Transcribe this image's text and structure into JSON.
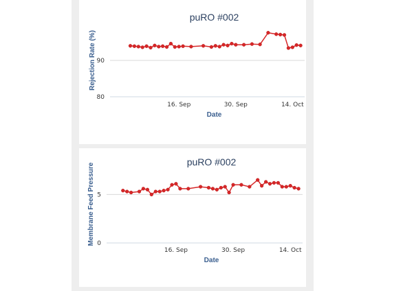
{
  "chart_data": [
    {
      "type": "line",
      "title": "puRO #002",
      "xlabel": "Date",
      "ylabel": "Rejection Rate (%)",
      "ylim": [
        80,
        100
      ],
      "yticks": [
        80,
        90
      ],
      "xlim": [
        "2023-08-30",
        "2023-10-17"
      ],
      "xticks": [
        {
          "date": "2023-09-16",
          "label": "16. Sep"
        },
        {
          "date": "2023-09-30",
          "label": "30. Sep"
        },
        {
          "date": "2023-10-14",
          "label": "14. Oct"
        }
      ],
      "grid": true,
      "series": [
        {
          "color": "#d62728",
          "x": [
            "2023-09-04",
            "2023-09-05",
            "2023-09-06",
            "2023-09-07",
            "2023-09-08",
            "2023-09-09",
            "2023-09-10",
            "2023-09-11",
            "2023-09-12",
            "2023-09-13",
            "2023-09-14",
            "2023-09-15",
            "2023-09-16",
            "2023-09-17",
            "2023-09-19",
            "2023-09-22",
            "2023-09-24",
            "2023-09-25",
            "2023-09-26",
            "2023-09-27",
            "2023-09-28",
            "2023-09-29",
            "2023-09-30",
            "2023-10-02",
            "2023-10-04",
            "2023-10-06",
            "2023-10-08",
            "2023-10-10",
            "2023-10-11",
            "2023-10-12",
            "2023-10-13",
            "2023-10-14",
            "2023-10-15",
            "2023-10-16"
          ],
          "y": [
            94.0,
            93.9,
            93.8,
            93.6,
            93.9,
            93.5,
            94.1,
            93.8,
            93.9,
            93.7,
            94.6,
            93.7,
            93.8,
            93.9,
            93.8,
            94.0,
            93.7,
            94.0,
            93.8,
            94.3,
            94.1,
            94.6,
            94.3,
            94.3,
            94.5,
            94.4,
            97.6,
            97.2,
            97.1,
            97.0,
            93.4,
            93.6,
            94.2,
            94.1
          ]
        }
      ]
    },
    {
      "type": "line",
      "title": "puRO #002",
      "xlabel": "Date",
      "ylabel": "Membrane Feed Pressure",
      "ylim": [
        0,
        8
      ],
      "yticks": [
        0,
        5
      ],
      "xlim": [
        "2023-08-30",
        "2023-10-17"
      ],
      "xticks": [
        {
          "date": "2023-09-16",
          "label": "16. Sep"
        },
        {
          "date": "2023-09-30",
          "label": "30. Sep"
        },
        {
          "date": "2023-10-14",
          "label": "14. Oct"
        }
      ],
      "grid": true,
      "series": [
        {
          "color": "#d62728",
          "x": [
            "2023-09-03",
            "2023-09-04",
            "2023-09-05",
            "2023-09-07",
            "2023-09-08",
            "2023-09-09",
            "2023-09-10",
            "2023-09-11",
            "2023-09-12",
            "2023-09-13",
            "2023-09-14",
            "2023-09-15",
            "2023-09-16",
            "2023-09-17",
            "2023-09-19",
            "2023-09-22",
            "2023-09-24",
            "2023-09-25",
            "2023-09-26",
            "2023-09-27",
            "2023-09-28",
            "2023-09-29",
            "2023-09-30",
            "2023-10-02",
            "2023-10-04",
            "2023-10-06",
            "2023-10-07",
            "2023-10-08",
            "2023-10-09",
            "2023-10-10",
            "2023-10-11",
            "2023-10-12",
            "2023-10-13",
            "2023-10-14",
            "2023-10-15",
            "2023-10-16"
          ],
          "y": [
            5.4,
            5.3,
            5.2,
            5.3,
            5.6,
            5.5,
            5.0,
            5.3,
            5.3,
            5.4,
            5.5,
            6.0,
            6.1,
            5.6,
            5.6,
            5.8,
            5.7,
            5.6,
            5.5,
            5.7,
            5.8,
            5.2,
            6.0,
            6.0,
            5.8,
            6.5,
            5.9,
            6.3,
            6.1,
            6.2,
            6.2,
            5.8,
            5.8,
            5.9,
            5.7,
            5.6
          ]
        }
      ]
    }
  ]
}
